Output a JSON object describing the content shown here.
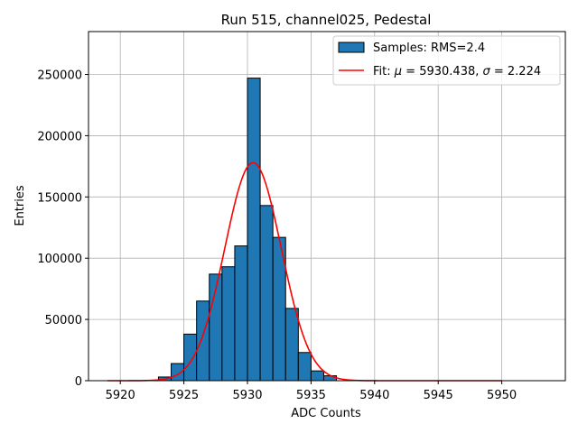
{
  "chart_data": {
    "type": "bar",
    "title": "Run 515, channel025, Pedestal",
    "xlabel": "ADC Counts",
    "ylabel": "Entries",
    "xlim": [
      5917.5,
      5955
    ],
    "ylim": [
      0,
      285000
    ],
    "xticks": [
      5920,
      5925,
      5930,
      5935,
      5940,
      5945,
      5950
    ],
    "yticks": [
      0,
      50000,
      100000,
      150000,
      200000,
      250000
    ],
    "grid": true,
    "legend_position": "top-right",
    "histogram": {
      "name": "Samples: RMS=2.4",
      "color": "#1f77b4",
      "edge_color": "#000000",
      "bin_width": 1,
      "bin_left_edges": [
        5923,
        5924,
        5925,
        5926,
        5927,
        5928,
        5929,
        5930,
        5931,
        5932,
        5933,
        5934,
        5935,
        5936
      ],
      "counts": [
        3000,
        14000,
        38000,
        65000,
        87000,
        93000,
        110000,
        247000,
        143000,
        117000,
        59000,
        23000,
        8000,
        4000
      ]
    },
    "fit": {
      "name": "Fit: μ = 5930.438, σ = 2.224",
      "legend_parts": [
        "Fit: ",
        "μ",
        " = 5930.438, ",
        "σ",
        " = 2.224"
      ],
      "color": "#ff0000",
      "mu": 5930.438,
      "sigma": 2.224,
      "amplitude": 178000,
      "x_range": [
        5919,
        5950
      ]
    }
  }
}
